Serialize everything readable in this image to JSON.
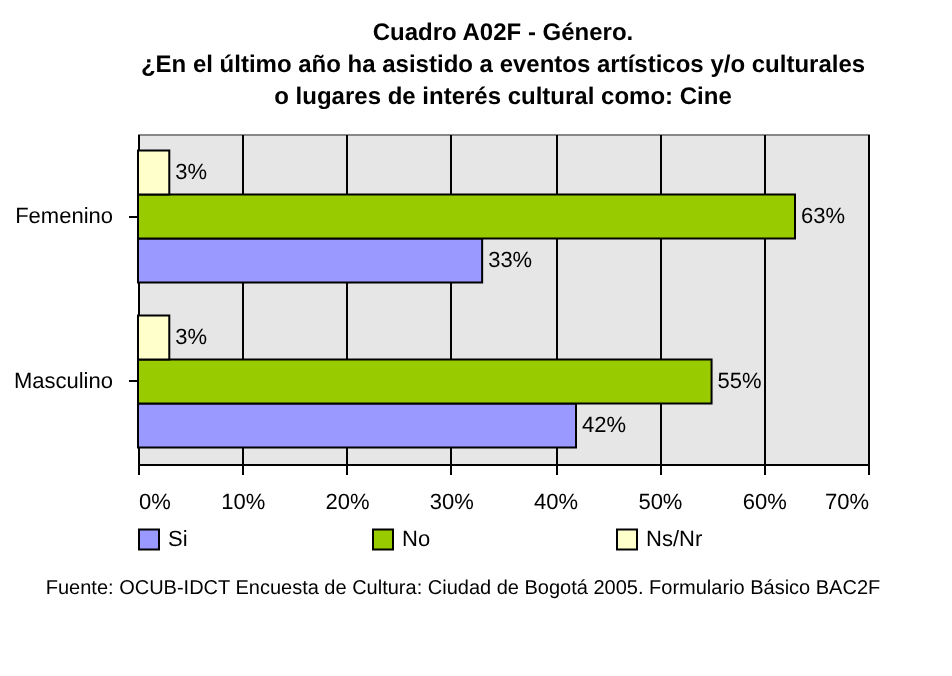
{
  "chart_data": {
    "type": "bar",
    "orientation": "horizontal",
    "title": "Cuadro A02F - Género.\n¿En el último año ha asistido a eventos artísticos y/o culturales\no lugares de interés cultural como: Cine",
    "categories": [
      "Femenino",
      "Masculino"
    ],
    "series": [
      {
        "name": "Si",
        "color": "#9999ff",
        "values": [
          33,
          42
        ],
        "value_labels": [
          "33%",
          "42%"
        ]
      },
      {
        "name": "No",
        "color": "#99cc00",
        "values": [
          63,
          55
        ],
        "value_labels": [
          "63%",
          "55%"
        ]
      },
      {
        "name": "Ns/Nr",
        "color": "#ffffcc",
        "values": [
          3,
          3
        ],
        "value_labels": [
          "3%",
          "3%"
        ]
      }
    ],
    "xlim": [
      0,
      70
    ],
    "xticks": [
      {
        "value": 0,
        "label": "0%"
      },
      {
        "value": 10,
        "label": "10%"
      },
      {
        "value": 20,
        "label": "20%"
      },
      {
        "value": 30,
        "label": "30%"
      },
      {
        "value": 40,
        "label": "40%"
      },
      {
        "value": 50,
        "label": "50%"
      },
      {
        "value": 60,
        "label": "60%"
      },
      {
        "value": 70,
        "label": "70%"
      }
    ],
    "grid": "x",
    "legend": "bottom",
    "annotations": [
      "Fuente: OCUB-IDCT Encuesta de Cultura: Ciudad de Bogotá 2005. Formulario Básico BAC2F"
    ]
  }
}
